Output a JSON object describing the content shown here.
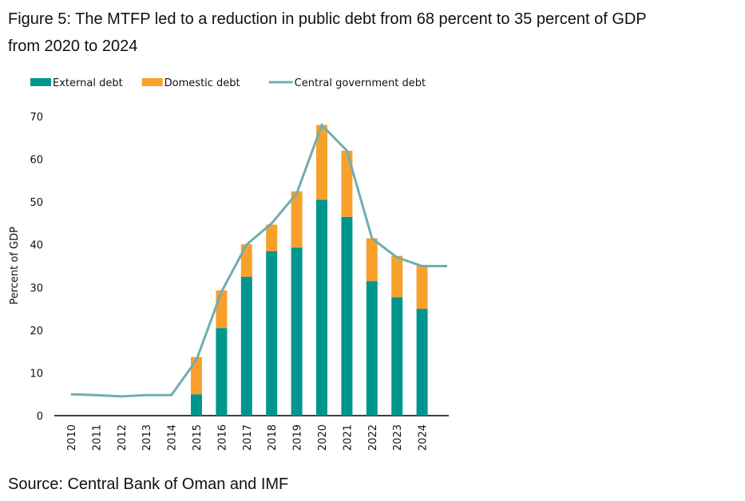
{
  "chart_data": {
    "type": "bar",
    "title": "Figure 5: The MTFP led to a reduction in public debt from 68 percent to 35 percent of GDP",
    "subtitle": "from 2020 to 2024",
    "source": "Source: Central Bank of Oman and IMF",
    "ylabel": "Percent of GDP",
    "stacked": true,
    "categories": [
      "2010",
      "2011",
      "2012",
      "2013",
      "2014",
      "2015",
      "2016",
      "2017",
      "2018",
      "2019",
      "2020",
      "2021",
      "2022",
      "2023",
      "2024",
      null
    ],
    "series": [
      {
        "name": "External debt",
        "color": "#00968f",
        "values": [
          null,
          null,
          null,
          null,
          null,
          5,
          20.5,
          32.5,
          38.5,
          39.3,
          50.5,
          46.5,
          31.5,
          27.7,
          25,
          null
        ]
      },
      {
        "name": "Domestic debt",
        "color": "#f7a12c",
        "values": [
          null,
          null,
          null,
          null,
          null,
          8.7,
          8.8,
          7.6,
          6.2,
          13.2,
          17.5,
          15.5,
          10,
          9.7,
          10.3,
          null
        ]
      },
      {
        "name": "Central government debt",
        "color": "#72adb0",
        "type": "line",
        "values": [
          5,
          4.8,
          4.5,
          4.8,
          4.8,
          13,
          29,
          40,
          45,
          52,
          68,
          62,
          41.5,
          37,
          35,
          35
        ]
      }
    ],
    "ylim": [
      0,
      70
    ],
    "yticks": [
      0,
      10,
      20,
      30,
      40,
      50,
      60,
      70
    ],
    "grid": false,
    "legend": "top"
  }
}
